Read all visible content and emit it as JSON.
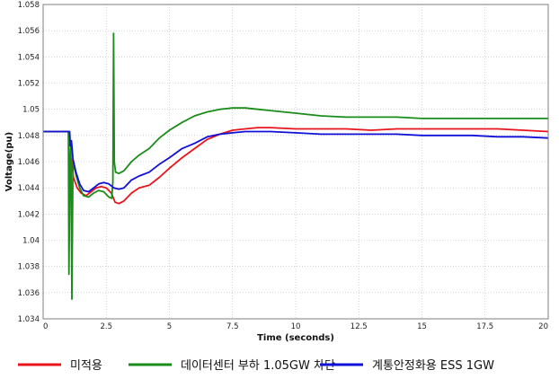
{
  "chart_data": {
    "type": "line",
    "title": "",
    "xlabel": "Time (seconds)",
    "ylabel": "Voltage(pu)",
    "xlim": [
      0,
      20
    ],
    "ylim": [
      1.034,
      1.058
    ],
    "x_ticks": [
      0,
      2.5,
      5,
      7.5,
      10,
      12.5,
      15,
      17.5,
      20
    ],
    "x_tick_labels": [
      "0",
      "2.5",
      "5",
      "7.5",
      "10",
      "12.5",
      "15",
      "17.5",
      "20"
    ],
    "y_ticks": [
      1.034,
      1.036,
      1.038,
      1.04,
      1.042,
      1.044,
      1.046,
      1.048,
      1.05,
      1.052,
      1.054,
      1.056,
      1.058
    ],
    "y_tick_labels": [
      "1.034",
      "1.036",
      "1.038",
      "1.04",
      "1.042",
      "1.044",
      "1.046",
      "1.048",
      "1.05",
      "1.052",
      "1.054",
      "1.056",
      "1.058"
    ],
    "grid": true,
    "legend_position": "bottom",
    "series": [
      {
        "name": "미적용",
        "color": "#e8141c",
        "points": [
          [
            0,
            1.0483
          ],
          [
            1.0,
            1.0483
          ],
          [
            1.05,
            1.0452
          ],
          [
            1.12,
            1.0462
          ],
          [
            1.2,
            1.0448
          ],
          [
            1.35,
            1.044
          ],
          [
            1.5,
            1.0436
          ],
          [
            1.7,
            1.0434
          ],
          [
            1.9,
            1.0437
          ],
          [
            2.1,
            1.044
          ],
          [
            2.3,
            1.0441
          ],
          [
            2.5,
            1.044
          ],
          [
            2.7,
            1.0436
          ],
          [
            2.85,
            1.0429
          ],
          [
            3.0,
            1.0428
          ],
          [
            3.2,
            1.043
          ],
          [
            3.5,
            1.0436
          ],
          [
            3.8,
            1.044
          ],
          [
            4.2,
            1.0442
          ],
          [
            4.6,
            1.0448
          ],
          [
            5.0,
            1.0455
          ],
          [
            5.5,
            1.0463
          ],
          [
            6.0,
            1.047
          ],
          [
            6.5,
            1.0477
          ],
          [
            7.0,
            1.0481
          ],
          [
            7.5,
            1.0484
          ],
          [
            8.0,
            1.0485
          ],
          [
            8.5,
            1.0486
          ],
          [
            9.0,
            1.0486
          ],
          [
            10.0,
            1.0485
          ],
          [
            11.0,
            1.0485
          ],
          [
            12.0,
            1.0485
          ],
          [
            13.0,
            1.0484
          ],
          [
            14.0,
            1.0485
          ],
          [
            15.0,
            1.0485
          ],
          [
            16.0,
            1.0485
          ],
          [
            17.0,
            1.0485
          ],
          [
            18.0,
            1.0485
          ],
          [
            19.0,
            1.0484
          ],
          [
            20.0,
            1.0483
          ]
        ]
      },
      {
        "name": "데이터센터 부하 1.05GW 차단",
        "color": "#1a8c1a",
        "points": [
          [
            0,
            1.0483
          ],
          [
            1.0,
            1.0483
          ],
          [
            1.02,
            1.0374
          ],
          [
            1.06,
            1.0455
          ],
          [
            1.1,
            1.0472
          ],
          [
            1.14,
            1.0355
          ],
          [
            1.18,
            1.046
          ],
          [
            1.3,
            1.045
          ],
          [
            1.45,
            1.044
          ],
          [
            1.6,
            1.0434
          ],
          [
            1.8,
            1.0433
          ],
          [
            2.0,
            1.0436
          ],
          [
            2.2,
            1.0438
          ],
          [
            2.4,
            1.0437
          ],
          [
            2.6,
            1.0433
          ],
          [
            2.72,
            1.0432
          ],
          [
            2.76,
            1.0445
          ],
          [
            2.79,
            1.0558
          ],
          [
            2.82,
            1.046
          ],
          [
            2.87,
            1.0452
          ],
          [
            3.0,
            1.0451
          ],
          [
            3.2,
            1.0453
          ],
          [
            3.5,
            1.046
          ],
          [
            3.8,
            1.0465
          ],
          [
            4.2,
            1.047
          ],
          [
            4.6,
            1.0478
          ],
          [
            5.0,
            1.0484
          ],
          [
            5.5,
            1.049
          ],
          [
            6.0,
            1.0495
          ],
          [
            6.5,
            1.0498
          ],
          [
            7.0,
            1.05
          ],
          [
            7.5,
            1.0501
          ],
          [
            8.0,
            1.0501
          ],
          [
            8.5,
            1.05
          ],
          [
            9.0,
            1.0499
          ],
          [
            10.0,
            1.0497
          ],
          [
            11.0,
            1.0495
          ],
          [
            12.0,
            1.0494
          ],
          [
            13.0,
            1.0494
          ],
          [
            14.0,
            1.0494
          ],
          [
            15.0,
            1.0493
          ],
          [
            16.0,
            1.0493
          ],
          [
            17.0,
            1.0493
          ],
          [
            18.0,
            1.0493
          ],
          [
            19.0,
            1.0493
          ],
          [
            20.0,
            1.0493
          ]
        ]
      },
      {
        "name": "계통안정화용 ESS 1GW",
        "color": "#1010d8",
        "points": [
          [
            0,
            1.0483
          ],
          [
            1.05,
            1.0483
          ],
          [
            1.08,
            1.0472
          ],
          [
            1.12,
            1.0476
          ],
          [
            1.18,
            1.0462
          ],
          [
            1.3,
            1.0452
          ],
          [
            1.45,
            1.0443
          ],
          [
            1.6,
            1.0438
          ],
          [
            1.8,
            1.0437
          ],
          [
            2.0,
            1.044
          ],
          [
            2.2,
            1.0443
          ],
          [
            2.4,
            1.0444
          ],
          [
            2.6,
            1.0443
          ],
          [
            2.8,
            1.044
          ],
          [
            3.0,
            1.0439
          ],
          [
            3.2,
            1.044
          ],
          [
            3.5,
            1.0446
          ],
          [
            3.8,
            1.0449
          ],
          [
            4.2,
            1.0452
          ],
          [
            4.6,
            1.0458
          ],
          [
            5.0,
            1.0463
          ],
          [
            5.5,
            1.047
          ],
          [
            6.0,
            1.0474
          ],
          [
            6.5,
            1.0479
          ],
          [
            7.0,
            1.0481
          ],
          [
            7.5,
            1.0482
          ],
          [
            8.0,
            1.0483
          ],
          [
            8.5,
            1.0483
          ],
          [
            9.0,
            1.0483
          ],
          [
            10.0,
            1.0482
          ],
          [
            11.0,
            1.0481
          ],
          [
            12.0,
            1.0481
          ],
          [
            13.0,
            1.0481
          ],
          [
            14.0,
            1.0481
          ],
          [
            15.0,
            1.048
          ],
          [
            16.0,
            1.048
          ],
          [
            17.0,
            1.048
          ],
          [
            18.0,
            1.0479
          ],
          [
            19.0,
            1.0479
          ],
          [
            20.0,
            1.0478
          ]
        ]
      }
    ]
  }
}
